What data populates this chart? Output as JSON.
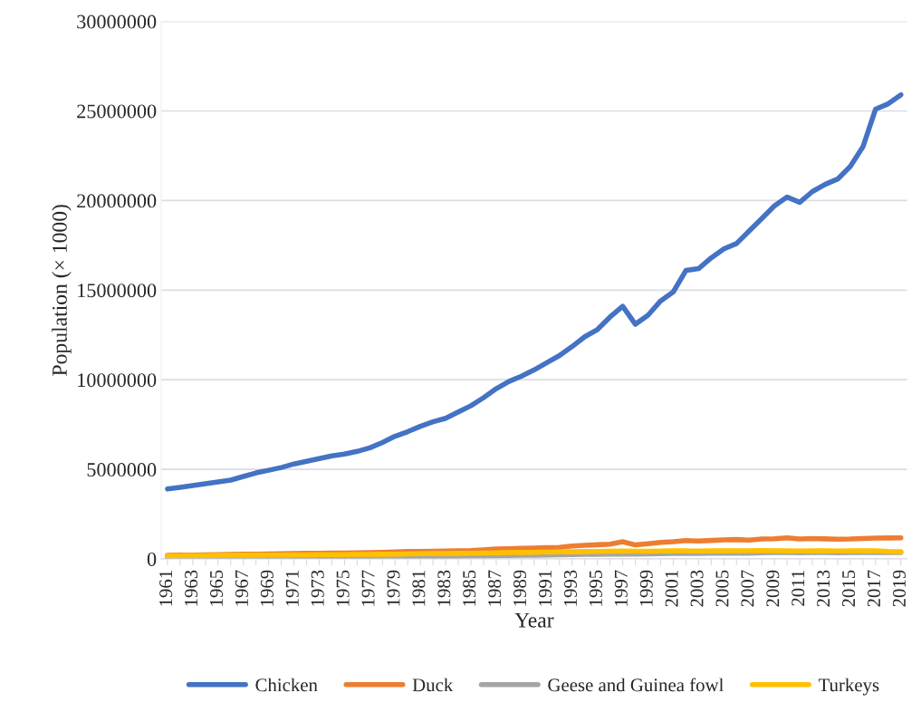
{
  "chart_data": {
    "type": "line",
    "xlabel": "Year",
    "ylabel": "Population (× 1000)",
    "categories": [
      "1961",
      null,
      "1963",
      null,
      "1965",
      null,
      "1967",
      null,
      "1969",
      null,
      "1971",
      null,
      "1973",
      null,
      "1975",
      null,
      "1977",
      null,
      "1979",
      null,
      "1981",
      null,
      "1983",
      null,
      "1985",
      null,
      "1987",
      null,
      "1989",
      null,
      "1991",
      null,
      "1993",
      null,
      "1995",
      null,
      "1997",
      null,
      "1999",
      null,
      "2001",
      null,
      "2003",
      null,
      "2005",
      null,
      "2007",
      null,
      "2009",
      null,
      "2011",
      null,
      "2013",
      null,
      "2015",
      null,
      "2017",
      null,
      "2019"
    ],
    "series": [
      {
        "name": "Chicken",
        "color": "#4472c4",
        "values": [
          3900000,
          4000000,
          4100000,
          4200000,
          4300000,
          4400000,
          4600000,
          4800000,
          4950000,
          5100000,
          5300000,
          5450000,
          5600000,
          5750000,
          5850000,
          6000000,
          6200000,
          6500000,
          6850000,
          7100000,
          7400000,
          7650000,
          7850000,
          8200000,
          8550000,
          9000000,
          9500000,
          9900000,
          10200000,
          10550000,
          10950000,
          11350000,
          11850000,
          12400000,
          12800000,
          13500000,
          14100000,
          13100000,
          13600000,
          14400000,
          14900000,
          16100000,
          16200000,
          16800000,
          17300000,
          17600000,
          18300000,
          19000000,
          19700000,
          20200000,
          19900000,
          20500000,
          20900000,
          21200000,
          21900000,
          23000000,
          25100000,
          25400000,
          25900000
        ]
      },
      {
        "name": "Duck",
        "color": "#ed7d31",
        "values": [
          200000,
          210000,
          220000,
          230000,
          240000,
          250000,
          260000,
          270000,
          280000,
          290000,
          300000,
          310000,
          320000,
          330000,
          330000,
          340000,
          350000,
          370000,
          390000,
          410000,
          420000,
          430000,
          440000,
          450000,
          470000,
          510000,
          550000,
          570000,
          590000,
          610000,
          630000,
          650000,
          720000,
          760000,
          790000,
          820000,
          960000,
          780000,
          850000,
          920000,
          960000,
          1020000,
          1000000,
          1030000,
          1060000,
          1080000,
          1050000,
          1110000,
          1130000,
          1180000,
          1110000,
          1140000,
          1120000,
          1100000,
          1110000,
          1140000,
          1160000,
          1170000,
          1180000
        ]
      },
      {
        "name": "Geese and Guinea fowl",
        "color": "#a5a5a5",
        "values": [
          50000,
          50000,
          60000,
          60000,
          60000,
          70000,
          70000,
          70000,
          80000,
          80000,
          80000,
          90000,
          90000,
          90000,
          100000,
          100000,
          100000,
          110000,
          115000,
          120000,
          125000,
          130000,
          140000,
          150000,
          160000,
          170000,
          180000,
          190000,
          200000,
          210000,
          220000,
          230000,
          240000,
          250000,
          260000,
          270000,
          280000,
          270000,
          280000,
          290000,
          300000,
          300000,
          310000,
          320000,
          320000,
          330000,
          320000,
          340000,
          350000,
          360000,
          340000,
          350000,
          350000,
          340000,
          350000,
          350000,
          360000,
          360000,
          360000
        ]
      },
      {
        "name": "Turkeys",
        "color": "#ffc000",
        "values": [
          180000,
          180000,
          190000,
          190000,
          200000,
          200000,
          210000,
          210000,
          220000,
          220000,
          230000,
          230000,
          240000,
          240000,
          240000,
          250000,
          250000,
          260000,
          270000,
          280000,
          290000,
          300000,
          300000,
          310000,
          320000,
          330000,
          340000,
          350000,
          360000,
          370000,
          380000,
          390000,
          400000,
          410000,
          420000,
          430000,
          440000,
          430000,
          430000,
          440000,
          450000,
          450000,
          440000,
          450000,
          450000,
          460000,
          460000,
          470000,
          460000,
          450000,
          440000,
          450000,
          450000,
          440000,
          450000,
          450000,
          460000,
          420000,
          400000
        ]
      }
    ],
    "ylim": [
      0,
      30000000
    ],
    "yticks": [
      0,
      5000000,
      10000000,
      15000000,
      20000000,
      25000000,
      30000000
    ],
    "grid": "y",
    "legend": "bottom",
    "marker": "none",
    "line_style": "solid"
  }
}
